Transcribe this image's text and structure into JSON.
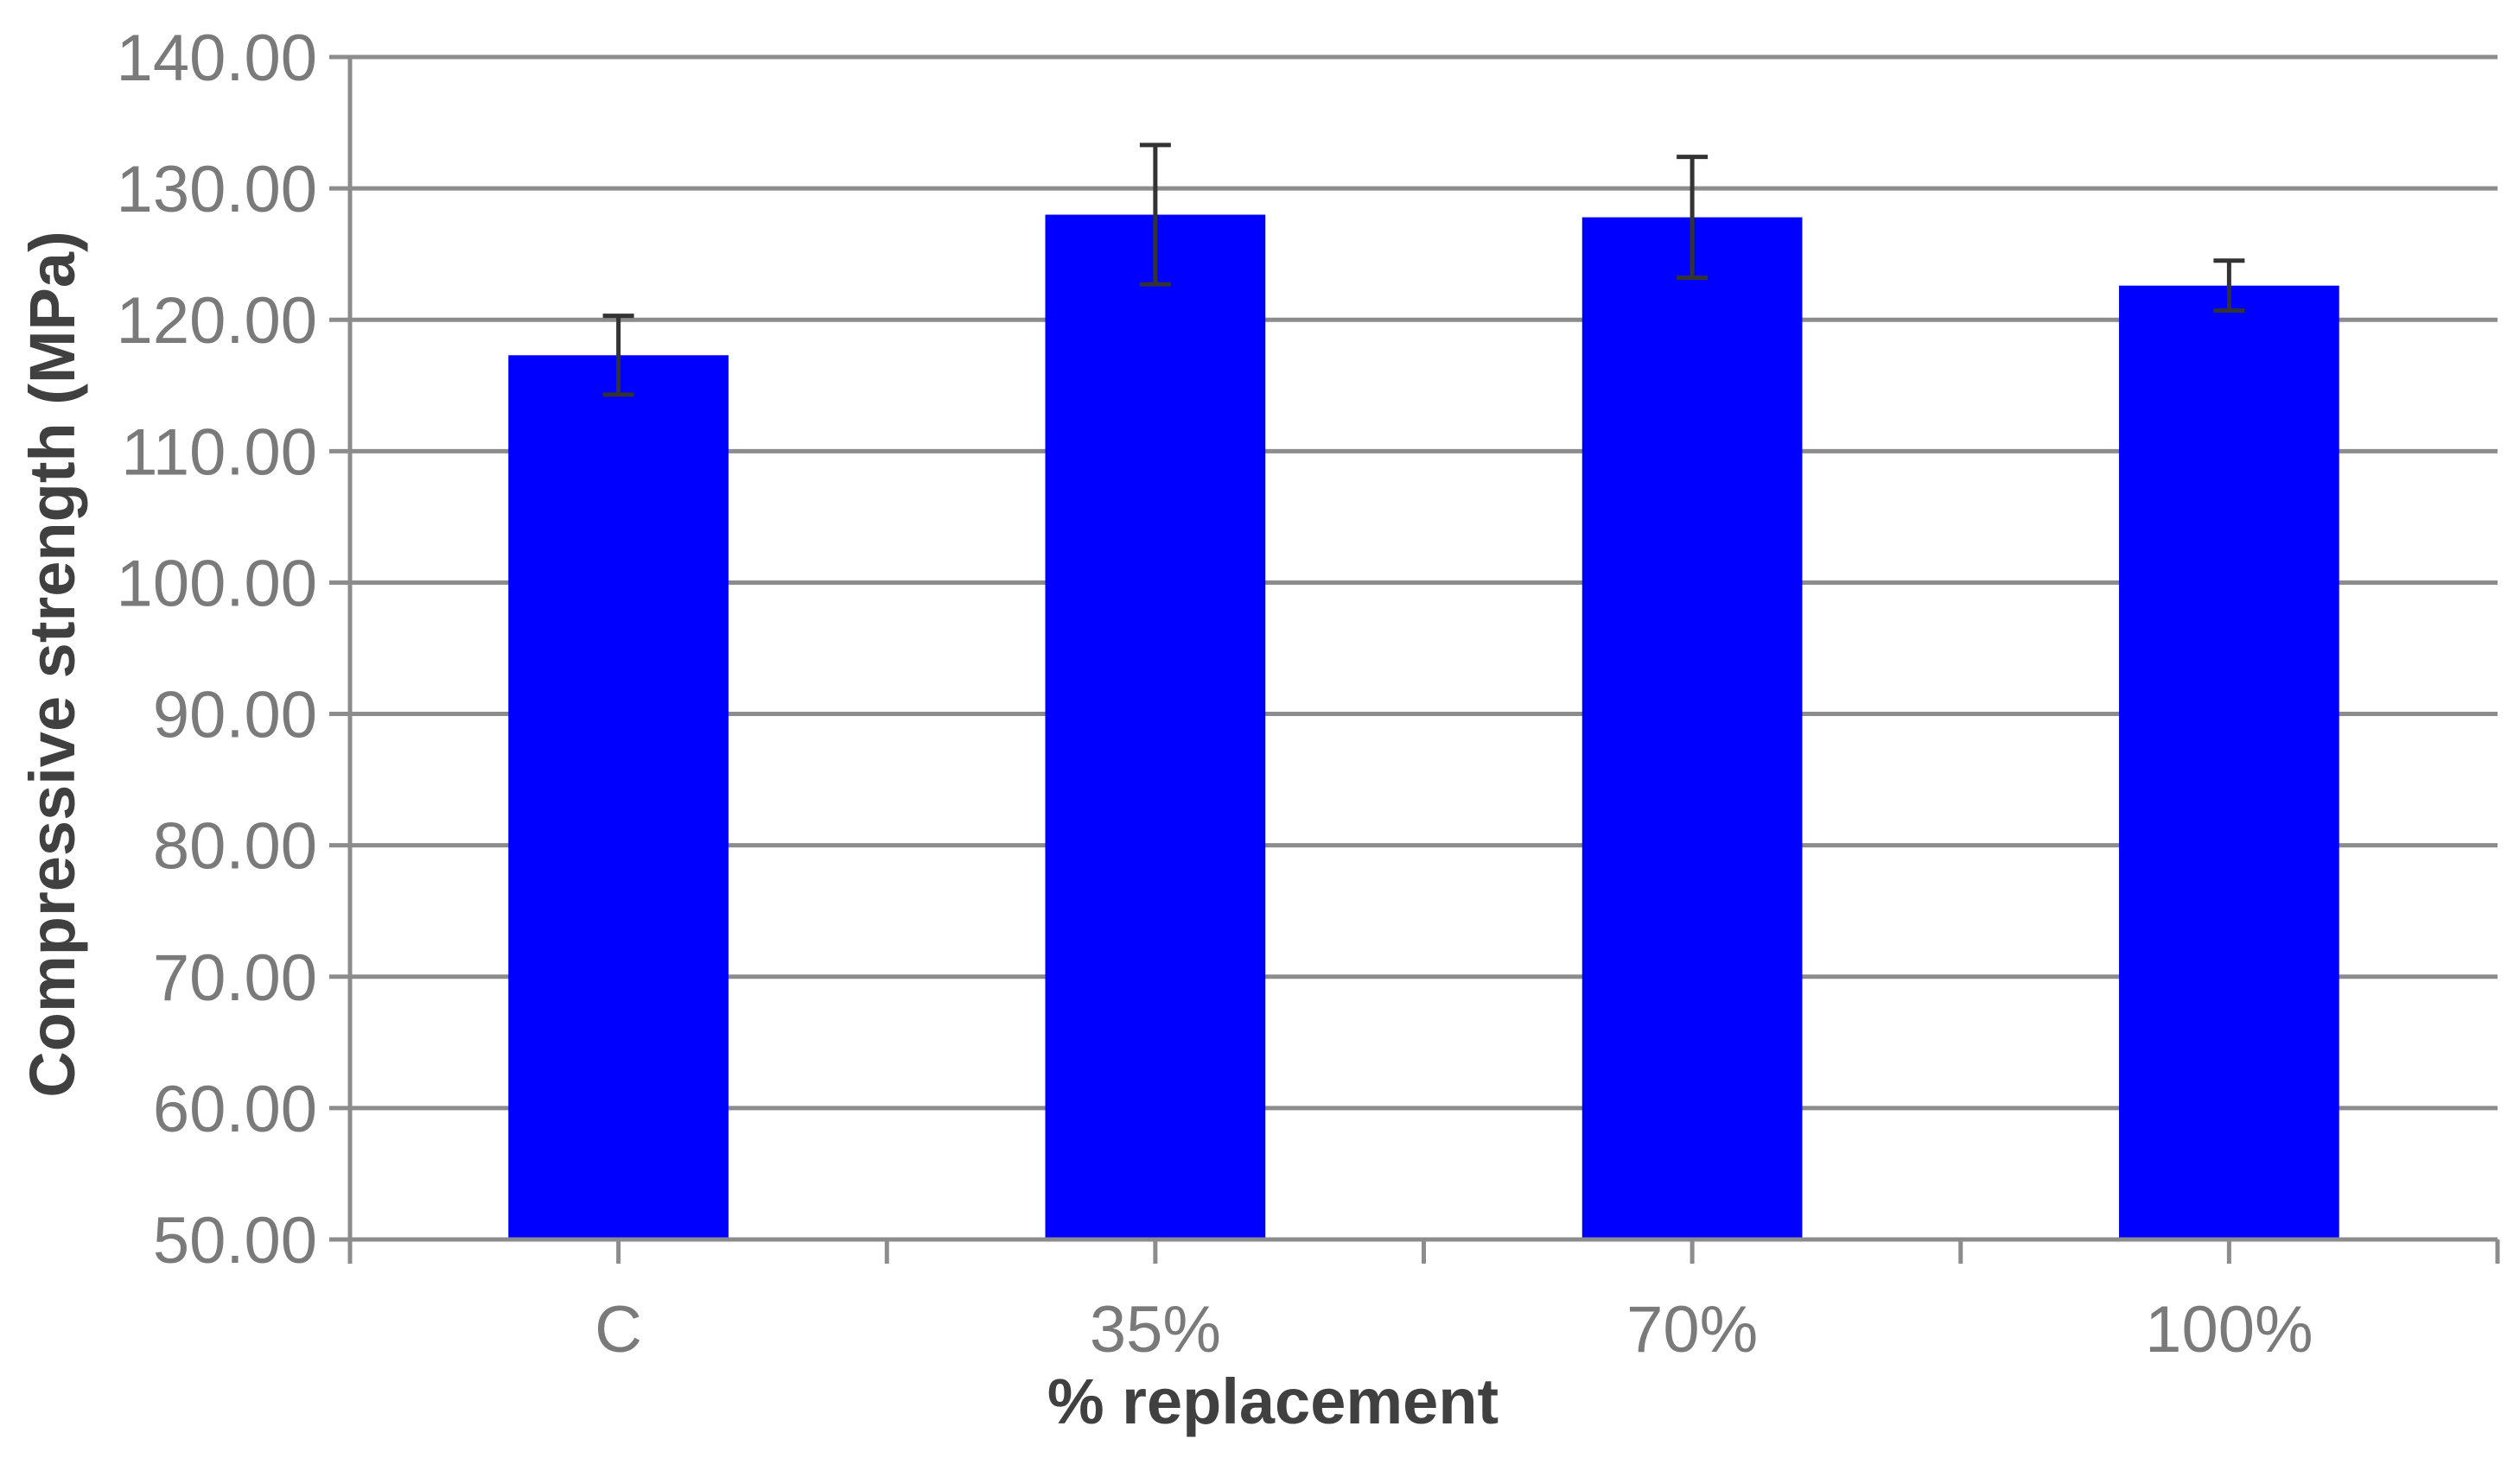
{
  "chart_data": {
    "type": "bar",
    "title": "",
    "xlabel": "% replacement",
    "ylabel": "Compressive strength (MPa)",
    "categories": [
      "C",
      "35%",
      "70%",
      "100%"
    ],
    "values": [
      117.3,
      128.0,
      127.8,
      122.6
    ],
    "error": [
      3.0,
      5.3,
      4.6,
      1.9
    ],
    "ylim": [
      50,
      140
    ],
    "yticks": [
      50,
      60,
      70,
      80,
      90,
      100,
      110,
      120,
      130,
      140
    ],
    "ytick_labels": [
      "50.00",
      "60.00",
      "70.00",
      "80.00",
      "90.00",
      "100.00",
      "110.00",
      "120.00",
      "130.00",
      "140.00"
    ],
    "grid": true,
    "legend": "none",
    "colors": {
      "bar": "#0000ff",
      "grid": "#8c8c8c",
      "axis": "#8c8c8c",
      "error_bar": "#333333",
      "tick_label": "#7a7a7a",
      "axis_title": "#404040"
    }
  }
}
